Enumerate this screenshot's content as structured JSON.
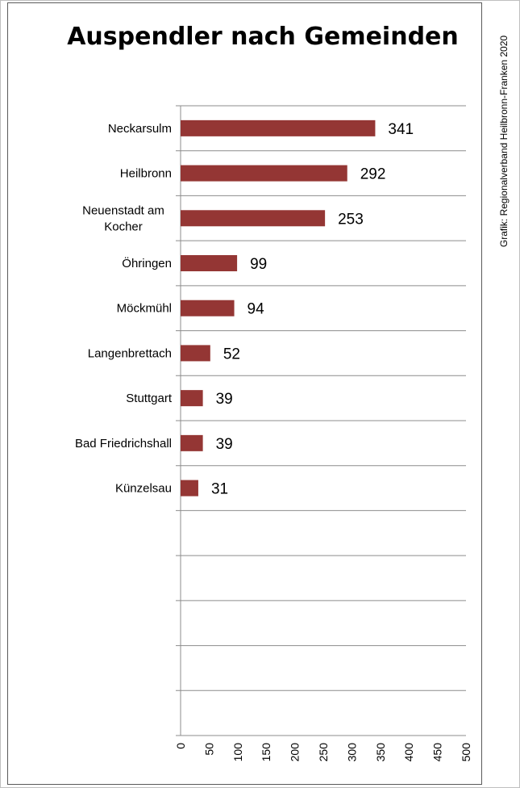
{
  "chart_data": {
    "type": "bar",
    "orientation": "horizontal",
    "title": "Auspendler nach Gemeinden",
    "credit": "Grafik: Regionalverband Heilbronn-Franken 2020",
    "categories": [
      [
        "Neckarsulm"
      ],
      [
        "Heilbronn"
      ],
      [
        "Neuenstadt am",
        "Kocher"
      ],
      [
        "Öhringen"
      ],
      [
        "Möckmühl"
      ],
      [
        "Langenbrettach"
      ],
      [
        "Stuttgart"
      ],
      [
        "Bad Friedrichshall"
      ],
      [
        "Künzelsau"
      ]
    ],
    "values": [
      341,
      292,
      253,
      99,
      94,
      52,
      39,
      39,
      31
    ],
    "empty_slots": 5,
    "xlim": [
      0,
      500
    ],
    "xticks": [
      "0",
      "50",
      "100",
      "150",
      "200",
      "250",
      "300",
      "350",
      "400",
      "450",
      "500"
    ],
    "grid": "horizontal",
    "bar_color": "#943634"
  }
}
